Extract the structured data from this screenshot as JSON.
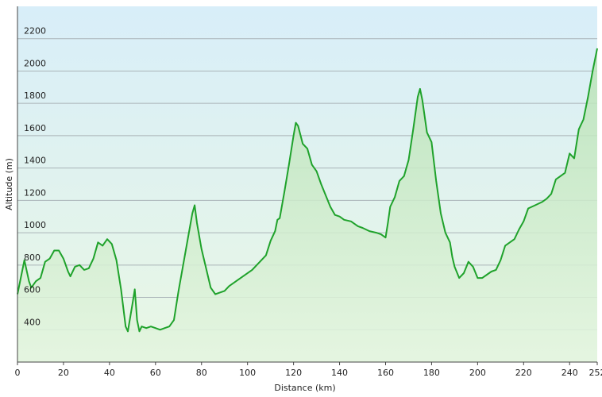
{
  "chart_data": {
    "type": "area",
    "x_label": "Distance  (km)",
    "y_label": "Altitude (m)",
    "x": [
      0,
      2,
      3,
      5,
      6,
      8,
      10,
      12,
      14,
      16,
      18,
      20,
      22,
      23,
      25,
      27,
      29,
      31,
      33,
      35,
      37,
      39,
      41,
      43,
      45,
      47,
      48,
      50,
      51,
      52,
      53,
      54,
      56,
      58,
      60,
      62,
      64,
      66,
      68,
      70,
      72,
      74,
      76,
      77,
      78,
      80,
      82,
      84,
      86,
      88,
      90,
      92,
      95,
      98,
      102,
      106,
      108,
      110,
      112,
      113,
      114,
      116,
      118,
      120,
      121,
      122,
      124,
      126,
      128,
      130,
      132,
      134,
      136,
      138,
      140,
      142,
      145,
      148,
      150,
      153,
      156,
      158,
      160,
      161,
      162,
      164,
      166,
      168,
      170,
      172,
      174,
      175,
      176,
      178,
      180,
      182,
      184,
      186,
      188,
      189,
      190,
      192,
      194,
      196,
      198,
      200,
      202,
      204,
      206,
      208,
      210,
      212,
      214,
      216,
      218,
      220,
      222,
      225,
      228,
      230,
      232,
      234,
      236,
      238,
      240,
      242,
      244,
      246,
      248,
      250,
      252
    ],
    "series": [
      {
        "color": "#1fa22b",
        "values": [
          620,
          760,
          830,
          700,
          660,
          700,
          720,
          820,
          840,
          890,
          890,
          840,
          760,
          730,
          790,
          800,
          770,
          780,
          840,
          940,
          920,
          960,
          930,
          830,
          650,
          420,
          390,
          560,
          650,
          460,
          390,
          420,
          410,
          420,
          410,
          400,
          410,
          420,
          460,
          640,
          800,
          960,
          1120,
          1170,
          1060,
          900,
          780,
          660,
          620,
          630,
          640,
          670,
          700,
          730,
          770,
          830,
          860,
          950,
          1010,
          1080,
          1090,
          1250,
          1420,
          1600,
          1680,
          1660,
          1550,
          1520,
          1420,
          1380,
          1300,
          1230,
          1160,
          1110,
          1100,
          1080,
          1070,
          1040,
          1030,
          1010,
          1000,
          990,
          970,
          1060,
          1160,
          1220,
          1320,
          1350,
          1450,
          1640,
          1840,
          1890,
          1820,
          1620,
          1560,
          1320,
          1120,
          1000,
          940,
          850,
          790,
          720,
          750,
          820,
          790,
          720,
          720,
          740,
          760,
          770,
          830,
          920,
          940,
          960,
          1020,
          1070,
          1150,
          1170,
          1190,
          1210,
          1240,
          1330,
          1350,
          1370,
          1490,
          1460,
          1640,
          1700,
          1840,
          2000,
          2140
        ]
      }
    ],
    "xlim": [
      0,
      252
    ],
    "xticks": [
      0,
      20,
      40,
      60,
      80,
      100,
      120,
      140,
      160,
      180,
      200,
      220,
      240,
      252
    ],
    "ylim": [
      200,
      2400
    ],
    "yticks": [
      400,
      600,
      800,
      1000,
      1200,
      1400,
      1600,
      1800,
      2000,
      2200
    ],
    "grid": true
  }
}
